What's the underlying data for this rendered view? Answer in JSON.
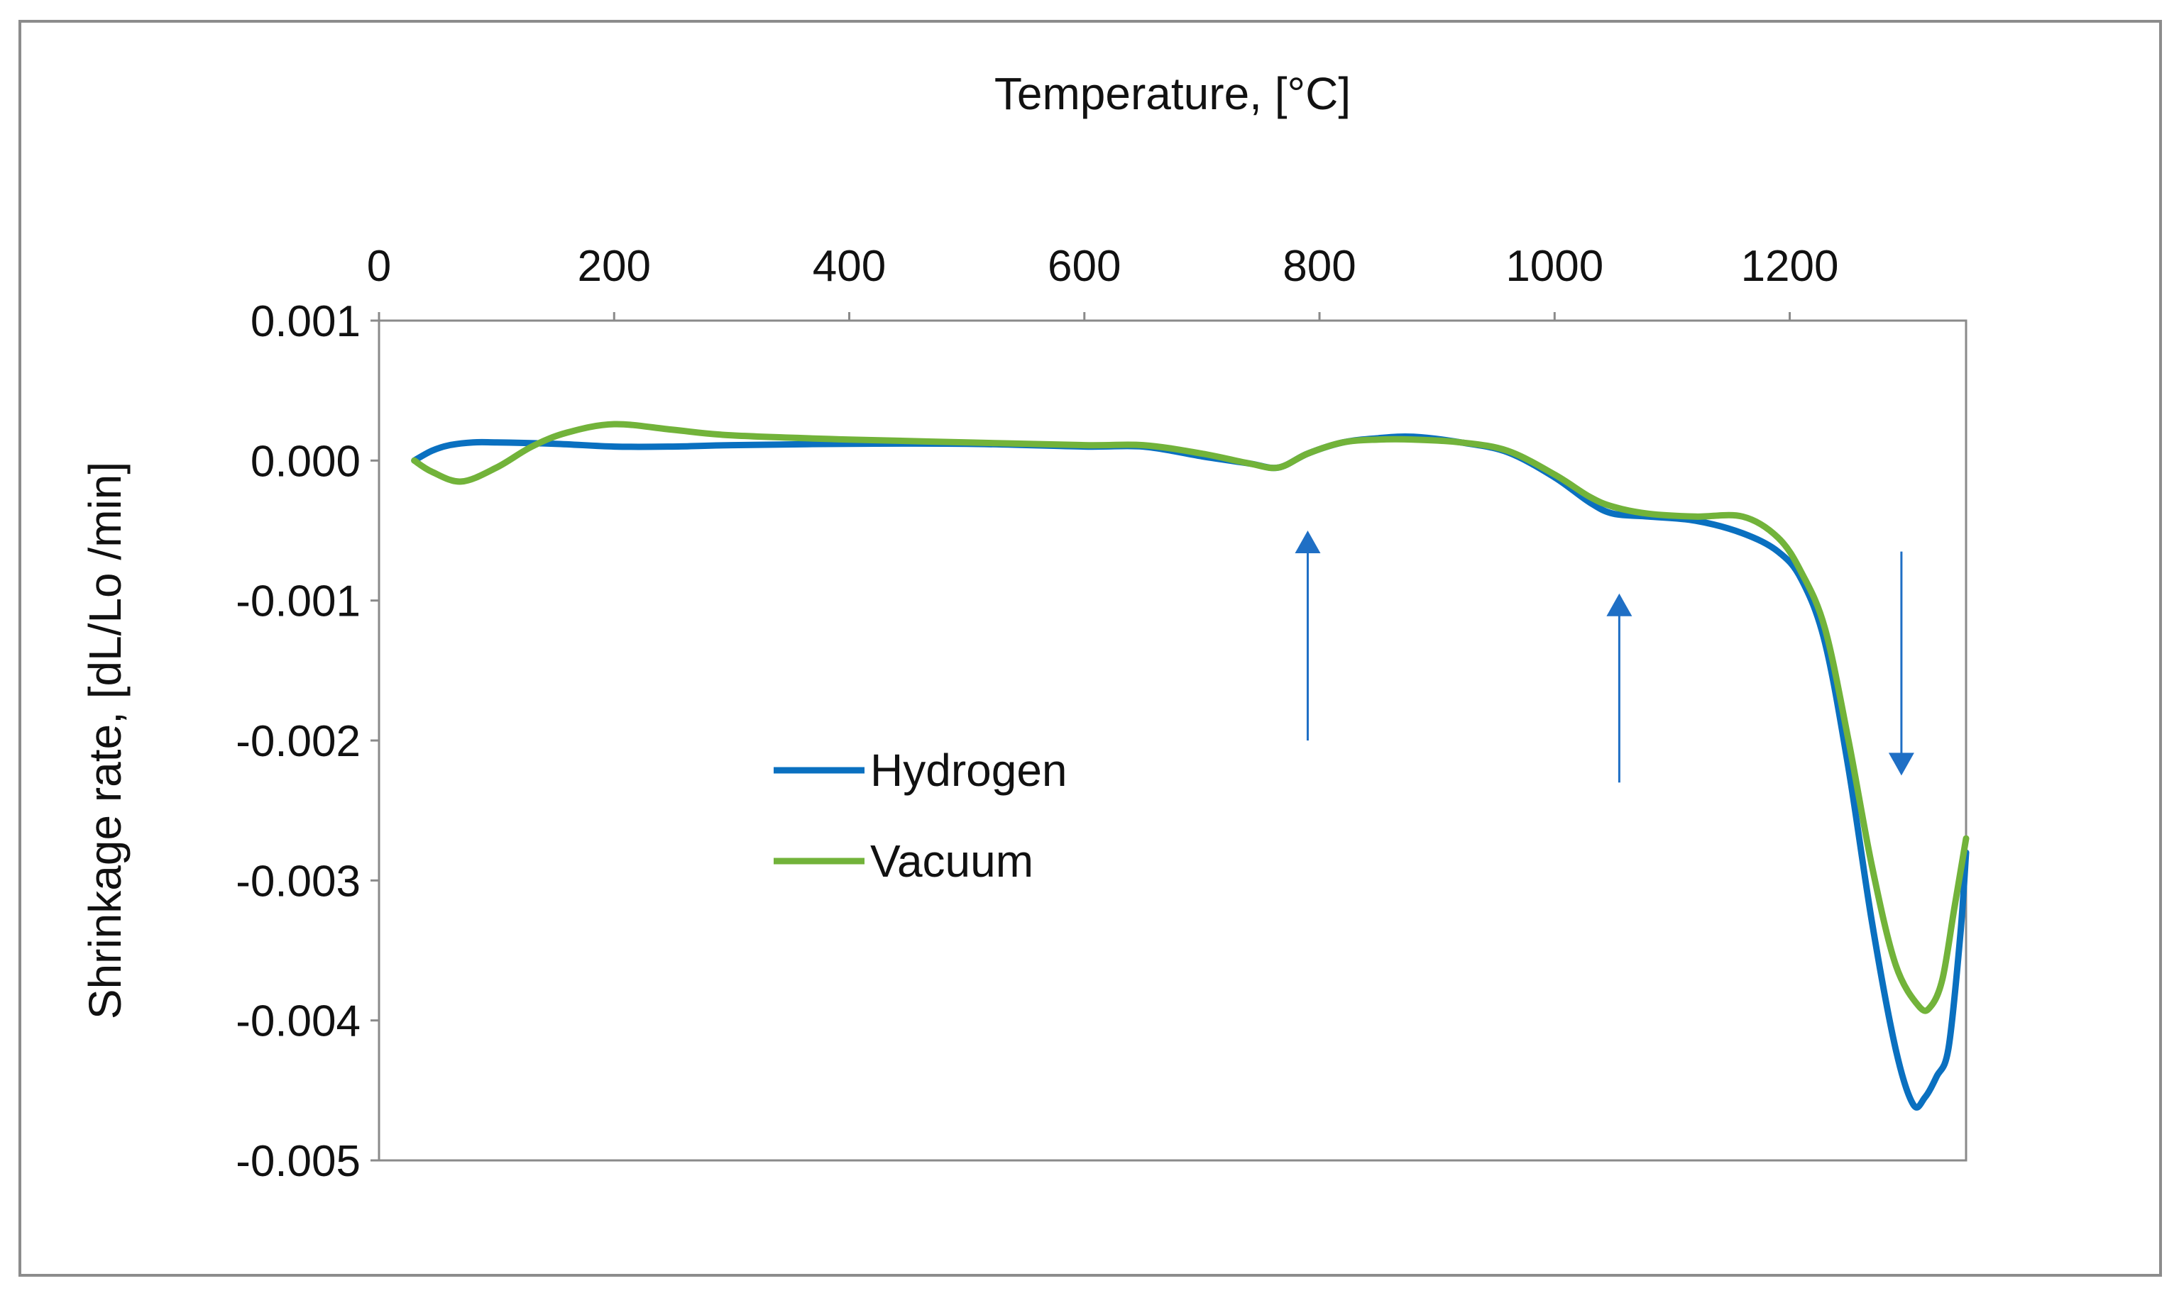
{
  "chart_data": {
    "type": "line",
    "title": "Temperature, [°C]",
    "xlabel": "Temperature, [°C]",
    "ylabel": "Shrinkage rate, [dL/Lo /min]",
    "xlim": [
      0,
      1350
    ],
    "ylim": [
      -0.005,
      0.001
    ],
    "x_axis_position": "top",
    "xticks": [
      0,
      200,
      400,
      600,
      800,
      1000,
      1200
    ],
    "xtick_labels": [
      "0",
      "200",
      "400",
      "600",
      "800",
      "1000",
      "1200"
    ],
    "yticks": [
      0.001,
      0.0,
      -0.001,
      -0.002,
      -0.003,
      -0.004,
      -0.005
    ],
    "ytick_labels": [
      "0.001",
      "0.000",
      "-0.001",
      "-0.002",
      "-0.003",
      "-0.004",
      "-0.005"
    ],
    "grid": false,
    "legend_position": "center-left",
    "series": [
      {
        "name": "Hydrogen",
        "color": "#0a70c0",
        "x": [
          30,
          45,
          60,
          80,
          100,
          150,
          200,
          250,
          300,
          400,
          500,
          600,
          650,
          700,
          740,
          765,
          790,
          820,
          850,
          880,
          920,
          960,
          1000,
          1030,
          1050,
          1080,
          1120,
          1160,
          1190,
          1210,
          1230,
          1250,
          1270,
          1290,
          1305,
          1315,
          1325,
          1335,
          1345,
          1350
        ],
        "y": [
          0.0,
          7e-05,
          0.00011,
          0.00013,
          0.00013,
          0.00012,
          0.0001,
          0.0001,
          0.00011,
          0.00012,
          0.00012,
          0.0001,
          0.0001,
          3e-05,
          -2e-05,
          -5e-05,
          5e-05,
          0.00013,
          0.00016,
          0.00017,
          0.00013,
          6e-05,
          -0.00012,
          -0.0003,
          -0.00038,
          -0.0004,
          -0.00043,
          -0.00052,
          -0.00065,
          -0.00085,
          -0.0013,
          -0.0022,
          -0.0033,
          -0.0042,
          -0.0046,
          -0.00455,
          -0.0044,
          -0.0042,
          -0.0034,
          -0.0028
        ]
      },
      {
        "name": "Vacuum",
        "color": "#72b33a",
        "x": [
          30,
          45,
          70,
          100,
          130,
          160,
          200,
          250,
          300,
          400,
          500,
          600,
          650,
          700,
          740,
          765,
          790,
          820,
          850,
          880,
          920,
          960,
          1000,
          1030,
          1050,
          1080,
          1120,
          1160,
          1190,
          1210,
          1230,
          1250,
          1270,
          1290,
          1310,
          1320,
          1330,
          1340,
          1350
        ],
        "y": [
          0.0,
          -8e-05,
          -0.00015,
          -5e-05,
          0.0001,
          0.0002,
          0.00026,
          0.00022,
          0.00018,
          0.00015,
          0.00013,
          0.00011,
          0.00011,
          5e-05,
          -2e-05,
          -5e-05,
          5e-05,
          0.00013,
          0.00015,
          0.00015,
          0.00013,
          7e-05,
          -0.0001,
          -0.00026,
          -0.00033,
          -0.00038,
          -0.0004,
          -0.0004,
          -0.00055,
          -0.0008,
          -0.0012,
          -0.002,
          -0.0029,
          -0.0036,
          -0.0039,
          -0.0039,
          -0.0037,
          -0.0032,
          -0.0027
        ]
      }
    ],
    "annotations": [
      {
        "type": "arrow",
        "direction": "up",
        "x": 790,
        "y_from": -0.002,
        "y_to": -0.0005
      },
      {
        "type": "arrow",
        "direction": "up",
        "x": 1055,
        "y_from": -0.0023,
        "y_to": -0.00095
      },
      {
        "type": "arrow",
        "direction": "down",
        "x": 1295,
        "y_from": -0.00065,
        "y_to": -0.00225
      }
    ]
  }
}
